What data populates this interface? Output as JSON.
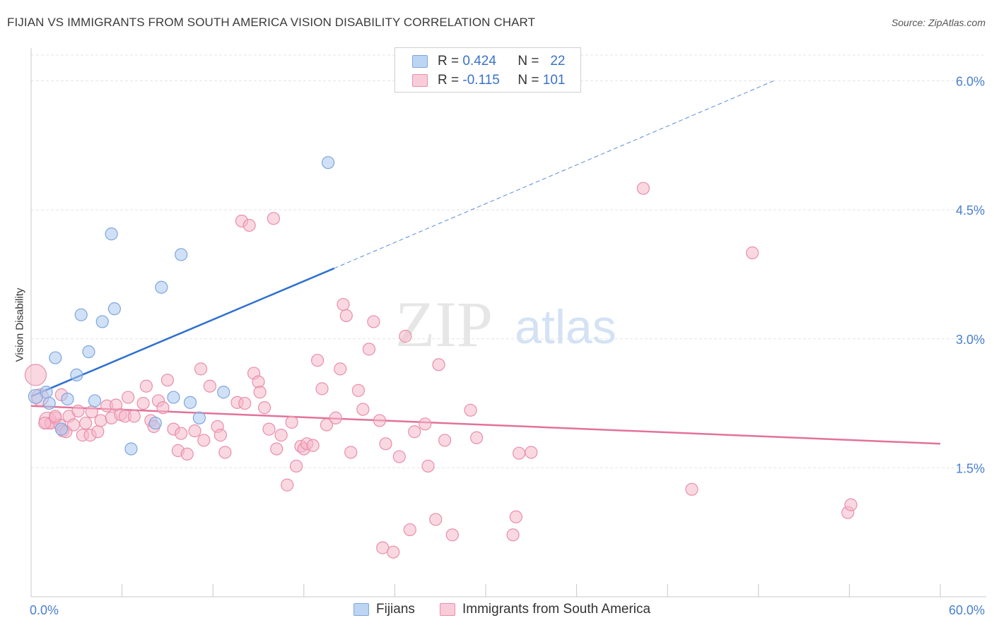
{
  "header": {
    "title": "FIJIAN VS IMMIGRANTS FROM SOUTH AMERICA VISION DISABILITY CORRELATION CHART",
    "source": "Source: ZipAtlas.com"
  },
  "watermark": {
    "zip": "ZIP",
    "atlas": "atlas"
  },
  "legend": {
    "rows": [
      {
        "r_label": "R =",
        "r_value": "0.424",
        "n_label": "N =",
        "n_value": "22",
        "color": "#a9c8f0"
      },
      {
        "r_label": "R =",
        "r_value": "-0.115",
        "n_label": "N =",
        "n_value": "101",
        "color": "#f5b8cb"
      }
    ]
  },
  "bottom_legend": {
    "items": [
      {
        "label": "Fijians",
        "color": "#a9c8f0"
      },
      {
        "label": "Immigrants from South America",
        "color": "#f5b8cb"
      }
    ]
  },
  "chart_data": {
    "type": "scatter",
    "title": "FIJIAN VS IMMIGRANTS FROM SOUTH AMERICA VISION DISABILITY CORRELATION CHART",
    "xlabel": "",
    "ylabel": "Vision Disability",
    "xlim": [
      0,
      60
    ],
    "ylim": [
      0,
      6.3
    ],
    "x_tick_labels": [
      "0.0%",
      "60.0%"
    ],
    "y_ticks": [
      1.5,
      3.0,
      4.5,
      6.0
    ],
    "y_tick_labels": [
      "1.5%",
      "3.0%",
      "4.5%",
      "6.0%"
    ],
    "grid": true,
    "legend_position": "top-center",
    "series": [
      {
        "name": "Fijians",
        "color": "#a9c8f0",
        "stroke": "#7ea6dc",
        "line_color": "#2e70cf",
        "trend": {
          "x0": 0,
          "y0": 2.33,
          "x1": 20,
          "y1": 3.82,
          "dashed_to_x": 49,
          "dashed_to_y": 6.0
        },
        "points": [
          [
            0.3,
            2.33
          ],
          [
            1.0,
            2.38
          ],
          [
            1.2,
            2.25
          ],
          [
            1.6,
            2.78
          ],
          [
            2.0,
            1.95
          ],
          [
            2.4,
            2.3
          ],
          [
            3.0,
            2.58
          ],
          [
            3.3,
            3.28
          ],
          [
            3.8,
            2.85
          ],
          [
            4.2,
            2.28
          ],
          [
            4.7,
            3.2
          ],
          [
            5.3,
            4.22
          ],
          [
            5.5,
            3.35
          ],
          [
            6.6,
            1.72
          ],
          [
            8.2,
            2.02
          ],
          [
            8.6,
            3.6
          ],
          [
            9.4,
            2.32
          ],
          [
            9.9,
            3.98
          ],
          [
            10.5,
            2.26
          ],
          [
            11.1,
            2.08
          ],
          [
            12.7,
            2.38
          ],
          [
            19.6,
            5.05
          ]
        ]
      },
      {
        "name": "Immigrants from South America",
        "color": "#f5b8cb",
        "stroke": "#e98eab",
        "line_color": "#e2729a",
        "trend": {
          "x0": 0,
          "y0": 2.22,
          "x1": 60,
          "y1": 1.78
        },
        "points": [
          [
            0.3,
            2.58
          ],
          [
            0.6,
            2.32
          ],
          [
            1.1,
            2.05
          ],
          [
            1.3,
            2.02
          ],
          [
            1.6,
            2.08
          ],
          [
            1.9,
            2.0
          ],
          [
            2.1,
            1.93
          ],
          [
            2.3,
            1.92
          ],
          [
            2.5,
            2.1
          ],
          [
            2.8,
            2.0
          ],
          [
            3.1,
            2.16
          ],
          [
            3.4,
            1.88
          ],
          [
            3.6,
            2.02
          ],
          [
            3.9,
            1.88
          ],
          [
            4.0,
            2.15
          ],
          [
            4.4,
            1.92
          ],
          [
            4.6,
            2.05
          ],
          [
            5.0,
            2.22
          ],
          [
            5.3,
            2.08
          ],
          [
            5.6,
            2.23
          ],
          [
            5.9,
            2.12
          ],
          [
            6.2,
            2.1
          ],
          [
            6.4,
            2.32
          ],
          [
            6.8,
            2.1
          ],
          [
            7.4,
            2.25
          ],
          [
            7.6,
            2.45
          ],
          [
            7.9,
            2.05
          ],
          [
            8.1,
            1.98
          ],
          [
            8.4,
            2.28
          ],
          [
            8.7,
            2.2
          ],
          [
            9.0,
            2.52
          ],
          [
            9.4,
            1.95
          ],
          [
            9.7,
            1.7
          ],
          [
            9.9,
            1.9
          ],
          [
            10.3,
            1.66
          ],
          [
            10.8,
            1.93
          ],
          [
            11.2,
            2.65
          ],
          [
            11.4,
            1.82
          ],
          [
            11.8,
            2.45
          ],
          [
            12.3,
            1.98
          ],
          [
            12.5,
            1.88
          ],
          [
            12.8,
            1.68
          ],
          [
            13.6,
            2.26
          ],
          [
            13.9,
            4.37
          ],
          [
            14.1,
            2.25
          ],
          [
            14.4,
            4.32
          ],
          [
            14.7,
            2.6
          ],
          [
            15.0,
            2.5
          ],
          [
            15.1,
            2.38
          ],
          [
            15.4,
            2.2
          ],
          [
            15.7,
            1.95
          ],
          [
            16.0,
            4.4
          ],
          [
            16.2,
            1.72
          ],
          [
            16.5,
            1.88
          ],
          [
            16.9,
            1.3
          ],
          [
            17.2,
            2.03
          ],
          [
            17.5,
            1.52
          ],
          [
            17.8,
            1.75
          ],
          [
            18.0,
            1.72
          ],
          [
            18.2,
            1.78
          ],
          [
            18.6,
            1.76
          ],
          [
            18.9,
            2.75
          ],
          [
            19.2,
            2.42
          ],
          [
            19.5,
            2.0
          ],
          [
            20.1,
            2.08
          ],
          [
            20.4,
            2.65
          ],
          [
            20.6,
            3.4
          ],
          [
            20.8,
            3.27
          ],
          [
            21.1,
            1.68
          ],
          [
            21.6,
            2.4
          ],
          [
            21.9,
            2.18
          ],
          [
            22.3,
            2.88
          ],
          [
            22.6,
            3.2
          ],
          [
            23.0,
            2.05
          ],
          [
            23.2,
            0.57
          ],
          [
            23.4,
            1.78
          ],
          [
            23.9,
            0.52
          ],
          [
            24.3,
            1.63
          ],
          [
            24.7,
            3.03
          ],
          [
            25.0,
            0.78
          ],
          [
            25.3,
            1.92
          ],
          [
            26.0,
            2.01
          ],
          [
            26.2,
            1.52
          ],
          [
            26.7,
            0.9
          ],
          [
            26.9,
            2.7
          ],
          [
            27.3,
            1.82
          ],
          [
            27.8,
            0.72
          ],
          [
            29.0,
            2.17
          ],
          [
            29.4,
            1.85
          ],
          [
            31.8,
            0.72
          ],
          [
            32.0,
            0.93
          ],
          [
            32.2,
            1.67
          ],
          [
            33.0,
            1.68
          ],
          [
            40.4,
            4.75
          ],
          [
            43.6,
            1.25
          ],
          [
            47.6,
            4.0
          ],
          [
            53.9,
            0.98
          ],
          [
            54.1,
            1.07
          ],
          [
            2.0,
            2.35
          ],
          [
            1.6,
            2.1
          ],
          [
            0.9,
            2.02
          ]
        ]
      }
    ]
  }
}
